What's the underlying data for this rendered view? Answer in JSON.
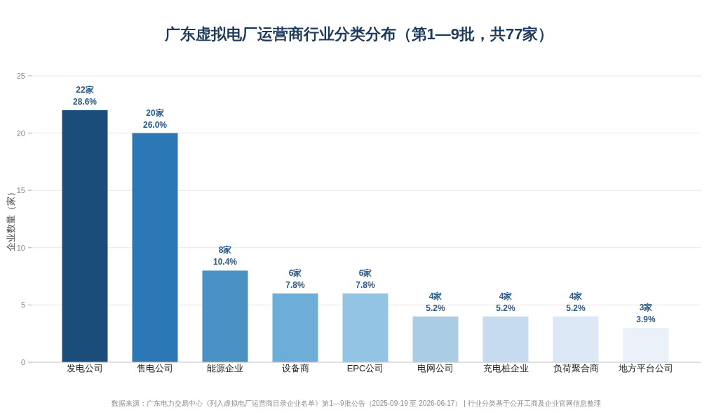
{
  "chart_data": {
    "type": "bar",
    "title": "广东虚拟电厂运营商行业分类分布（第1—9批，共77家）",
    "ylabel": "企业数量（家）",
    "categories": [
      "发电公司",
      "售电公司",
      "能源企业",
      "设备商",
      "EPC公司",
      "电网公司",
      "充电桩企业",
      "负荷聚合商",
      "地方平台公司"
    ],
    "values": [
      22,
      20,
      8,
      6,
      6,
      4,
      4,
      4,
      3
    ],
    "colors": [
      "#1b4d7a",
      "#2c77b6",
      "#4a91c4",
      "#6caed7",
      "#93c4e3",
      "#abcde4",
      "#c6dbef",
      "#dce8f5",
      "#eaf1f9"
    ],
    "value_labels": [
      "22家\n28.6%",
      "20家\n26.0%",
      "8家\n10.4%",
      "6家\n7.8%",
      "6家\n7.8%",
      "4家\n5.2%",
      "4家\n5.2%",
      "4家\n5.2%",
      "3家\n3.9%"
    ],
    "ylim": [
      0,
      25
    ],
    "yticks": [
      0,
      5,
      10,
      15,
      20,
      25
    ],
    "grid": "y",
    "annotations": [
      "数据来源：广东电力交易中心《列入虚拟电厂运营商目录企业名单》第1—9批公告（2025-09-19 至 2026-06-17） | 行业分类基于公开工商及企业官网信息整理"
    ]
  }
}
